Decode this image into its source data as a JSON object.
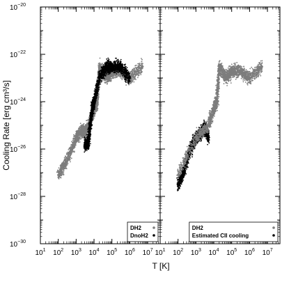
{
  "chart_data": [
    {
      "type": "scatter",
      "panel": "left",
      "xlabel": "T [K]",
      "ylabel": "Cooling Rate [erg cm³/s]",
      "x_scale": "log",
      "y_scale": "log",
      "xlim": [
        10,
        50000000
      ],
      "ylim": [
        1e-30,
        1e-20
      ],
      "x_ticks": [
        10,
        100,
        1000,
        10000,
        100000,
        1000000,
        10000000
      ],
      "y_ticks": [
        1e-30,
        1e-28,
        1e-26,
        1e-24,
        1e-22,
        1e-20
      ],
      "legend_position": "bottom-right",
      "series": [
        {
          "name": "DH2",
          "color": "#7d7d7d",
          "x": [
            100,
            300,
            1000,
            2000,
            3000,
            5000,
            8000,
            10000,
            15000,
            20000,
            50000,
            100000,
            300000,
            1000000,
            5000000
          ],
          "y": [
            8e-28,
            3e-27,
            3e-26,
            6e-26,
            5e-26,
            1e-25,
            3e-25,
            5e-25,
            1e-24,
            3e-23,
            1e-23,
            2e-23,
            2e-23,
            1e-23,
            3e-23
          ]
        },
        {
          "name": "DnoH2",
          "color": "#000000",
          "x": [
            3000,
            5000,
            6000,
            8000,
            10000,
            20000,
            50000,
            100000,
            300000,
            1000000
          ],
          "y": [
            1.5e-26,
            2e-26,
            1e-25,
            5e-25,
            1e-24,
            1e-23,
            3e-23,
            3e-23,
            3e-23,
            1e-23
          ]
        }
      ]
    },
    {
      "type": "scatter",
      "panel": "right",
      "xlabel": "T [K]",
      "x_scale": "log",
      "y_scale": "log",
      "xlim": [
        10,
        50000000
      ],
      "ylim": [
        1e-30,
        1e-20
      ],
      "x_ticks": [
        10,
        100,
        1000,
        10000,
        100000,
        1000000,
        10000000
      ],
      "legend_position": "bottom-right",
      "series": [
        {
          "name": "Estimated CII cooling",
          "color": "#000000",
          "x": [
            100,
            200,
            500,
            1000,
            2000,
            3000,
            4000,
            5000
          ],
          "y": [
            3e-28,
            1e-27,
            1e-26,
            3e-26,
            5e-26,
            8e-26,
            6e-26,
            3e-26
          ]
        },
        {
          "name": "DH2",
          "color": "#7d7d7d",
          "x": [
            100,
            1000,
            5000,
            10000,
            15000,
            20000,
            50000,
            100000,
            300000,
            1000000,
            5000000
          ],
          "y": [
            8e-28,
            3e-26,
            1e-25,
            5e-25,
            1e-24,
            3e-23,
            1e-23,
            2e-23,
            2e-23,
            1e-23,
            3e-23
          ]
        }
      ]
    }
  ]
}
